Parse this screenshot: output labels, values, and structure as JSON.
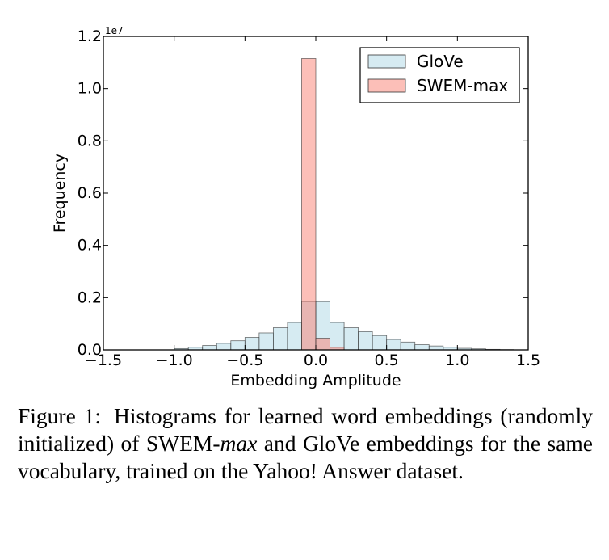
{
  "chart_data": {
    "type": "bar",
    "title": "",
    "xlabel": "Embedding Amplitude",
    "ylabel": "Frequency",
    "y_multiplier_label": "1e7",
    "xlim": [
      -1.5,
      1.5
    ],
    "ylim": [
      0,
      1.2
    ],
    "x_ticks": [
      -1.5,
      -1.0,
      -0.5,
      0.0,
      0.5,
      1.0,
      1.5
    ],
    "x_tick_labels": [
      "−1.5",
      "−1.0",
      "−0.5",
      "0.0",
      "0.5",
      "1.0",
      "1.5"
    ],
    "y_ticks": [
      0,
      0.2,
      0.4,
      0.6,
      0.8,
      1.0,
      1.2
    ],
    "y_tick_labels": [
      "0.0",
      "0.2",
      "0.4",
      "0.6",
      "0.8",
      "1.0",
      "1.2"
    ],
    "legend_position": "top-right",
    "bin_width": 0.1,
    "series": [
      {
        "name": "GloVe",
        "color": "#add8e6",
        "bin_starts": [
          -1.0,
          -0.9,
          -0.8,
          -0.7,
          -0.6,
          -0.5,
          -0.4,
          -0.3,
          -0.2,
          -0.1,
          0.0,
          0.1,
          0.2,
          0.3,
          0.4,
          0.5,
          0.6,
          0.7,
          0.8,
          0.9,
          1.0,
          1.1,
          1.2,
          1.3
        ],
        "values": [
          0.005,
          0.01,
          0.017,
          0.025,
          0.035,
          0.048,
          0.065,
          0.085,
          0.105,
          0.185,
          0.185,
          0.105,
          0.085,
          0.07,
          0.055,
          0.04,
          0.03,
          0.02,
          0.015,
          0.01,
          0.006,
          0.004,
          0.002,
          0.001
        ]
      },
      {
        "name": "SWEM-max",
        "color": "#fa8072",
        "bin_starts": [
          -0.1,
          0.0,
          0.1
        ],
        "values": [
          1.115,
          0.045,
          0.01
        ]
      }
    ]
  },
  "caption": {
    "label": "Figure 1:",
    "text_before": "Histograms for learned word embeddings (randomly initialized) of SWEM-",
    "emphasis": "max",
    "text_after": " and GloVe embeddings for the same vocabulary, trained on the Yahoo! Answer dataset."
  }
}
